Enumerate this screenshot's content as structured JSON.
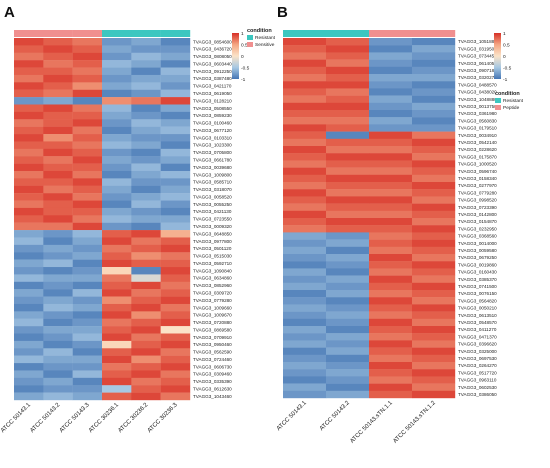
{
  "panels": {
    "a": {
      "letter": "A"
    },
    "b": {
      "letter": "B"
    }
  },
  "colors": {
    "scale_high": "#d73027",
    "scale_mid_high": "#f4a582",
    "scale_mid": "#fbe3c8",
    "scale_mid_low": "#a6c8e3",
    "scale_low": "#4575b4",
    "resistant": "#3cc7c0",
    "sensitive": "#f08f8f",
    "peptide": "#f08f8f"
  },
  "chart_data": [
    {
      "type": "heatmap",
      "panel": "A",
      "color_scale": {
        "min": -1,
        "max": 1,
        "ticks": [
          1,
          0.5,
          0,
          -0.5,
          -1
        ]
      },
      "annotation": {
        "title": "condition",
        "levels": [
          "Resistant",
          "Sensitive"
        ],
        "column_condition": [
          "Sensitive",
          "Sensitive",
          "Sensitive",
          "Resistant",
          "Resistant",
          "Resistant"
        ]
      },
      "columns": [
        "ATCC 50143.1",
        "ATCC 50143.2",
        "ATCC 50143.3",
        "ATCC 30236.1",
        "ATCC 30236.2",
        "ATCC 30236.3"
      ],
      "rows": [
        "TVAGG3_0854600",
        "TVAGG3_0436720",
        "TVAGG3_0808050",
        "TVAGG3_0603440",
        "TVAGG3_0912250",
        "TVAGG3_0387480",
        "TVAGG3_0421170",
        "TVAGG3_0619050",
        "TVAGG3_0128210",
        "TVAGG3_0508550",
        "TVAGG3_0859230",
        "TVAGG3_0100460",
        "TVAGG3_0677120",
        "TVAGG3_0103310",
        "TVAGG3_1023300",
        "TVAGG3_0705800",
        "TVAGG3_0661780",
        "TVAGG3_0039680",
        "TVAGG3_1009800",
        "TVAGG3_0585710",
        "TVAGG3_0318070",
        "TVAGG3_0058520",
        "TVAGG3_0055250",
        "TVAGG3_0421130",
        "TVAGG3_0723550",
        "TVAGG3_0009320",
        "TVAGG3_0648850",
        "TVAGG3_0977800",
        "TVAGG3_0501120",
        "TVAGG3_0515030",
        "TVAGG3_0592710",
        "TVAGG3_1090840",
        "TVAGG3_0634860",
        "TVAGG3_0852960",
        "TVAGG3_0309720",
        "TVAGG3_0779280",
        "TVAGG3_1009660",
        "TVAGG3_1009670",
        "TVAGG3_0720880",
        "TVAGG3_0869580",
        "TVAGG3_0709910",
        "TVAGG3_0950460",
        "TVAGG3_0562590",
        "TVAGG3_0724460",
        "TVAGG3_0606730",
        "TVAGG3_0309460",
        "TVAGG3_0335390",
        "TVAGG3_0612630",
        "TVAGG3_1043460"
      ],
      "values": [
        [
          0.9,
          0.8,
          0.7,
          -0.8,
          -0.7,
          -0.9
        ],
        [
          0.8,
          0.9,
          0.8,
          -0.7,
          -0.8,
          -0.8
        ],
        [
          0.7,
          0.8,
          0.9,
          -0.8,
          -0.6,
          -0.7
        ],
        [
          0.9,
          0.7,
          0.8,
          -0.6,
          -0.7,
          -0.9
        ],
        [
          0.8,
          0.8,
          0.7,
          -0.7,
          -0.9,
          -0.6
        ],
        [
          0.7,
          0.9,
          0.8,
          -0.8,
          -0.7,
          -0.7
        ],
        [
          0.9,
          0.8,
          0.6,
          -0.7,
          -0.6,
          -0.8
        ],
        [
          0.8,
          0.7,
          0.9,
          -0.9,
          -0.8,
          -0.6
        ],
        [
          -0.8,
          -0.7,
          -0.9,
          0.6,
          0.7,
          0.9
        ],
        [
          0.8,
          0.9,
          0.7,
          -0.6,
          -0.9,
          -0.7
        ],
        [
          0.9,
          0.8,
          0.8,
          -0.7,
          -0.8,
          -0.9
        ],
        [
          0.7,
          0.8,
          0.9,
          -0.8,
          -0.6,
          -0.7
        ],
        [
          0.8,
          0.9,
          0.7,
          -0.9,
          -0.7,
          -0.6
        ],
        [
          0.9,
          0.6,
          0.8,
          -0.7,
          -0.8,
          -0.8
        ],
        [
          0.8,
          0.8,
          0.7,
          -0.6,
          -0.7,
          -0.9
        ],
        [
          0.7,
          0.9,
          0.8,
          -0.8,
          -0.9,
          -0.6
        ],
        [
          0.8,
          0.7,
          0.9,
          -0.7,
          -0.8,
          -0.7
        ],
        [
          0.9,
          0.8,
          0.8,
          -0.8,
          -0.6,
          -0.9
        ],
        [
          0.7,
          0.9,
          0.7,
          -0.9,
          -0.7,
          -0.6
        ],
        [
          0.8,
          0.8,
          0.9,
          -0.6,
          -0.8,
          -0.8
        ],
        [
          0.9,
          0.7,
          0.8,
          -0.7,
          -0.9,
          -0.7
        ],
        [
          0.8,
          0.9,
          0.7,
          -0.8,
          -0.7,
          -0.6
        ],
        [
          0.7,
          0.8,
          0.9,
          -0.9,
          -0.6,
          -0.8
        ],
        [
          0.9,
          0.8,
          0.8,
          -0.7,
          -0.8,
          -0.9
        ],
        [
          0.8,
          0.9,
          0.7,
          -0.6,
          -0.7,
          -0.7
        ],
        [
          0.7,
          0.7,
          0.9,
          -0.8,
          -0.9,
          -0.6
        ],
        [
          -0.7,
          -0.8,
          -0.6,
          0.8,
          0.9,
          0.4
        ],
        [
          -0.6,
          -0.9,
          -0.7,
          0.9,
          0.7,
          0.8
        ],
        [
          -0.8,
          -0.7,
          -0.8,
          0.7,
          0.8,
          0.9
        ],
        [
          -0.9,
          -0.8,
          -0.7,
          0.8,
          0.6,
          0.7
        ],
        [
          -0.7,
          -0.6,
          -0.9,
          0.9,
          0.8,
          0.8
        ],
        [
          -0.8,
          -0.9,
          -0.8,
          0.1,
          -0.9,
          0.9
        ],
        [
          -0.6,
          -0.7,
          -0.7,
          0.7,
          -0.2,
          0.8
        ],
        [
          -0.9,
          -0.8,
          -0.9,
          0.8,
          0.9,
          0.7
        ],
        [
          -0.7,
          -0.9,
          -0.6,
          0.9,
          0.7,
          0.8
        ],
        [
          -0.8,
          -0.7,
          -0.8,
          0.6,
          0.8,
          0.9
        ],
        [
          -0.9,
          -0.6,
          -0.7,
          0.8,
          0.9,
          0.7
        ],
        [
          -0.7,
          -0.8,
          -0.9,
          0.9,
          0.6,
          0.8
        ],
        [
          -0.6,
          -0.9,
          -0.8,
          0.7,
          0.8,
          0.9
        ],
        [
          -0.8,
          -0.7,
          -0.7,
          0.8,
          0.9,
          0.0
        ],
        [
          -0.9,
          -0.8,
          -0.6,
          0.9,
          0.7,
          0.8
        ],
        [
          -0.7,
          -0.9,
          -0.8,
          0.1,
          0.8,
          0.9
        ],
        [
          -0.8,
          -0.6,
          -0.9,
          0.8,
          0.9,
          0.7
        ],
        [
          -0.6,
          -0.7,
          -0.7,
          0.9,
          0.6,
          0.8
        ],
        [
          -0.9,
          -0.8,
          -0.8,
          0.7,
          0.8,
          0.9
        ],
        [
          -0.7,
          -0.9,
          -0.6,
          0.8,
          0.9,
          0.7
        ],
        [
          -0.8,
          -0.7,
          -0.9,
          0.9,
          0.7,
          0.8
        ],
        [
          -0.9,
          -0.8,
          -0.8,
          -0.5,
          0.8,
          0.9
        ],
        [
          -0.7,
          -0.6,
          -0.7,
          0.8,
          0.9,
          0.7
        ]
      ]
    },
    {
      "type": "heatmap",
      "panel": "B",
      "color_scale": {
        "min": -1,
        "max": 1,
        "ticks": [
          1,
          0.5,
          0,
          -0.5,
          -1
        ]
      },
      "annotation": {
        "title": "condition",
        "levels": [
          "Resistant",
          "Peptide"
        ],
        "column_condition": [
          "Resistant",
          "Resistant",
          "Peptide",
          "Peptide"
        ]
      },
      "columns": [
        "ATCC 50143.1",
        "ATCC 50143.2",
        "ATCC 50143.sTN.1.1",
        "ATCC 50143.sTN.1.2"
      ],
      "rows": [
        "TVAGG3_1051880",
        "TVAGG3_0319500",
        "TVAGG3_0734450",
        "TVAGG3_0614050",
        "TVAGG3_0907180",
        "TVAGG3_0320270",
        "TVAGG3_0488570",
        "TVAGG3_0438020",
        "TVAGG3_1048880",
        "TVAGG3_0013750",
        "TVAGG3_0361980",
        "TVAGG3_0560830",
        "TVAGG3_0179510",
        "TVAGG3_0034910",
        "TVAGG3_0542140",
        "TVAGG3_0228620",
        "TVAGG3_0175870",
        "TVAGG3_1000520",
        "TVAGG3_0596740",
        "TVAGG3_0158340",
        "TVAGG3_0277970",
        "TVAGG3_0779280",
        "TVAGG3_0998520",
        "TVAGG3_0723390",
        "TVAGG3_0142800",
        "TVAGG3_0154870",
        "TVAGG3_0232950",
        "TVAGG3_0368560",
        "TVAGG3_0014000",
        "TVAGG3_0059580",
        "TVAGG3_0679250",
        "TVAGG3_0019860",
        "TVAGG3_0160430",
        "TVAGG3_0385370",
        "TVAGG3_0741500",
        "TVAGG3_0076150",
        "TVAGG3_0564820",
        "TVAGG3_0050210",
        "TVAGG3_0613510",
        "TVAGG3_0548570",
        "TVAGG3_0411270",
        "TVAGG3_0471370",
        "TVAGG3_0396620",
        "TVAGG3_0325000",
        "TVAGG3_0697530",
        "TVAGG3_0264270",
        "TVAGG3_0517720",
        "TVAGG3_0963110",
        "TVAGG3_0602530",
        "TVAGG3_0386050"
      ],
      "values": [
        [
          0.9,
          0.8,
          -0.8,
          -0.9
        ],
        [
          0.8,
          0.9,
          -0.9,
          -0.7
        ],
        [
          0.7,
          0.8,
          -0.7,
          -0.8
        ],
        [
          0.9,
          0.7,
          -0.8,
          -0.9
        ],
        [
          0.8,
          0.9,
          -0.9,
          -0.8
        ],
        [
          0.7,
          0.8,
          -0.7,
          -0.7
        ],
        [
          0.9,
          0.9,
          -0.8,
          -0.9
        ],
        [
          0.8,
          0.7,
          -0.9,
          -0.8
        ],
        [
          0.7,
          0.8,
          -0.7,
          -0.9
        ],
        [
          0.9,
          0.9,
          -0.8,
          -0.7
        ],
        [
          0.8,
          0.8,
          -0.9,
          -0.8
        ],
        [
          0.7,
          0.7,
          -0.7,
          -0.9
        ],
        [
          0.9,
          0.8,
          -0.8,
          -0.8
        ],
        [
          0.8,
          -0.9,
          0.9,
          0.7
        ],
        [
          0.7,
          0.8,
          0.8,
          0.9
        ],
        [
          0.9,
          0.7,
          0.7,
          0.8
        ],
        [
          0.8,
          0.9,
          0.9,
          0.7
        ],
        [
          0.7,
          0.8,
          0.8,
          0.9
        ],
        [
          0.9,
          0.7,
          0.7,
          0.8
        ],
        [
          0.8,
          0.9,
          0.9,
          0.7
        ],
        [
          0.7,
          0.8,
          0.8,
          0.9
        ],
        [
          0.9,
          0.7,
          0.7,
          0.8
        ],
        [
          0.8,
          0.9,
          0.9,
          0.7
        ],
        [
          0.7,
          0.8,
          0.8,
          0.9
        ],
        [
          0.9,
          0.7,
          0.7,
          0.8
        ],
        [
          0.8,
          0.9,
          0.9,
          0.7
        ],
        [
          0.7,
          0.8,
          0.8,
          0.9
        ],
        [
          -0.7,
          -0.8,
          0.7,
          0.8
        ],
        [
          -0.8,
          -0.7,
          0.8,
          0.9
        ],
        [
          -0.7,
          -0.9,
          0.7,
          0.8
        ],
        [
          -0.8,
          -0.7,
          0.9,
          0.7
        ],
        [
          -0.9,
          -0.8,
          0.8,
          0.9
        ],
        [
          -0.7,
          -0.9,
          0.7,
          0.8
        ],
        [
          -0.8,
          -0.7,
          0.9,
          0.7
        ],
        [
          -0.7,
          -0.8,
          0.8,
          0.9
        ],
        [
          -0.9,
          -0.7,
          0.7,
          0.8
        ],
        [
          -0.8,
          -0.9,
          0.9,
          0.7
        ],
        [
          -0.7,
          -0.8,
          0.8,
          0.9
        ],
        [
          -0.8,
          -0.7,
          0.7,
          0.8
        ],
        [
          -0.9,
          -0.8,
          0.9,
          0.7
        ],
        [
          -0.7,
          -0.9,
          0.8,
          0.9
        ],
        [
          -0.8,
          -0.7,
          0.7,
          0.8
        ],
        [
          -0.7,
          -0.8,
          0.9,
          0.7
        ],
        [
          -0.9,
          -0.7,
          0.8,
          0.9
        ],
        [
          -0.8,
          -0.9,
          0.7,
          0.8
        ],
        [
          -0.7,
          -0.8,
          0.9,
          0.7
        ],
        [
          -0.8,
          -0.7,
          0.8,
          0.9
        ],
        [
          -0.9,
          -0.8,
          0.7,
          0.8
        ],
        [
          -0.7,
          -0.9,
          0.9,
          0.7
        ],
        [
          -0.8,
          -0.7,
          0.8,
          0.9
        ]
      ]
    }
  ]
}
